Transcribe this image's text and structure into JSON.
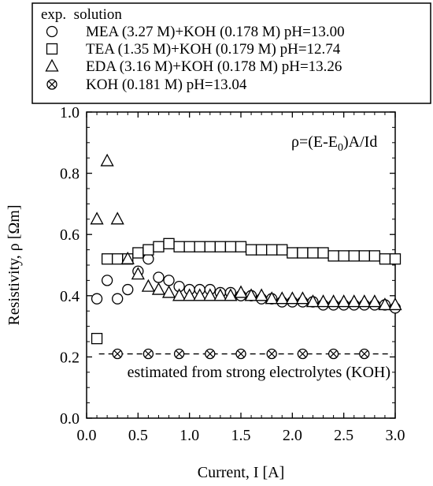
{
  "chart_data": {
    "type": "scatter",
    "title": "",
    "xlabel": "Current, I [A]",
    "ylabel": "Resistivity, ρ [Ωm]",
    "xlim": [
      0.0,
      3.0
    ],
    "ylim": [
      0.0,
      1.0
    ],
    "x_ticks": [
      "0.0",
      "0.5",
      "1.0",
      "1.5",
      "2.0",
      "2.5",
      "3.0"
    ],
    "y_ticks": [
      "0.0",
      "0.2",
      "0.4",
      "0.6",
      "0.8",
      "1.0"
    ],
    "grid": false,
    "legend_placement": "top (above plot)",
    "legend_header": "exp.  solution",
    "formula_annotation": {
      "prefix": "ρ=(E-E",
      "subscript": "0",
      "suffix": ")A/Id"
    },
    "reference_line": {
      "y": 0.21,
      "style": "dashed",
      "label": "estimated from strong electrolytes (KOH)"
    },
    "series": [
      {
        "name": "MEA (3.27 M)+KOH (0.178 M) pH=13.00",
        "marker": "circle",
        "x": [
          0.1,
          0.2,
          0.3,
          0.4,
          0.5,
          0.6,
          0.7,
          0.8,
          0.9,
          1.0,
          1.1,
          1.2,
          1.3,
          1.4,
          1.5,
          1.6,
          1.7,
          1.8,
          1.9,
          2.0,
          2.1,
          2.2,
          2.3,
          2.4,
          2.5,
          2.6,
          2.7,
          2.8,
          2.9,
          3.0
        ],
        "y": [
          0.39,
          0.45,
          0.39,
          0.42,
          0.48,
          0.52,
          0.46,
          0.45,
          0.43,
          0.42,
          0.42,
          0.42,
          0.41,
          0.41,
          0.4,
          0.4,
          0.39,
          0.39,
          0.38,
          0.38,
          0.38,
          0.38,
          0.37,
          0.37,
          0.37,
          0.37,
          0.37,
          0.37,
          0.37,
          0.36
        ]
      },
      {
        "name": "TEA (1.35 M)+KOH (0.179 M) pH=12.74",
        "marker": "square",
        "x": [
          0.1,
          0.2,
          0.3,
          0.4,
          0.5,
          0.6,
          0.7,
          0.8,
          0.9,
          1.0,
          1.1,
          1.2,
          1.3,
          1.4,
          1.5,
          1.6,
          1.7,
          1.8,
          1.9,
          2.0,
          2.1,
          2.2,
          2.3,
          2.4,
          2.5,
          2.6,
          2.7,
          2.8,
          2.9,
          3.0
        ],
        "y": [
          0.26,
          0.52,
          0.52,
          0.52,
          0.54,
          0.55,
          0.56,
          0.57,
          0.56,
          0.56,
          0.56,
          0.56,
          0.56,
          0.56,
          0.56,
          0.55,
          0.55,
          0.55,
          0.55,
          0.54,
          0.54,
          0.54,
          0.54,
          0.53,
          0.53,
          0.53,
          0.53,
          0.53,
          0.52,
          0.52
        ]
      },
      {
        "name": "EDA (3.16 M)+KOH (0.178 M) pH=13.26",
        "marker": "triangle",
        "x": [
          0.1,
          0.2,
          0.3,
          0.4,
          0.5,
          0.6,
          0.7,
          0.8,
          0.9,
          1.0,
          1.1,
          1.2,
          1.3,
          1.4,
          1.5,
          1.6,
          1.7,
          1.8,
          1.9,
          2.0,
          2.1,
          2.2,
          2.3,
          2.4,
          2.5,
          2.6,
          2.7,
          2.8,
          2.9,
          3.0
        ],
        "y": [
          0.65,
          0.84,
          0.65,
          0.52,
          0.47,
          0.43,
          0.42,
          0.41,
          0.4,
          0.4,
          0.4,
          0.4,
          0.4,
          0.4,
          0.41,
          0.4,
          0.4,
          0.39,
          0.39,
          0.39,
          0.39,
          0.38,
          0.38,
          0.38,
          0.38,
          0.38,
          0.38,
          0.38,
          0.37,
          0.37
        ]
      },
      {
        "name": "KOH (0.181 M) pH=13.04",
        "marker": "circle-x",
        "x": [
          0.3,
          0.6,
          0.9,
          1.2,
          1.5,
          1.8,
          2.1,
          2.4,
          2.7
        ],
        "y": [
          0.21,
          0.21,
          0.21,
          0.21,
          0.21,
          0.21,
          0.21,
          0.21,
          0.21
        ]
      }
    ]
  }
}
